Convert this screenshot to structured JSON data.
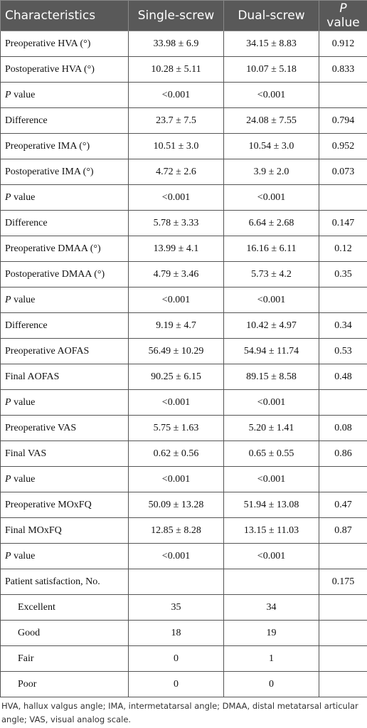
{
  "table": {
    "header": [
      "Characteristics",
      "Single-screw",
      "Dual-screw",
      {
        "em": "P",
        "text": " value"
      }
    ],
    "rows": [
      [
        "Preoperative HVA (°)",
        "33.98 ± 6.9",
        "34.15 ± 8.83",
        "0.912"
      ],
      [
        "Postoperative HVA (°)",
        "10.28 ± 5.11",
        "10.07 ± 5.18",
        "0.833"
      ],
      [
        {
          "em": "P",
          "text": " value"
        },
        "<0.001",
        "<0.001",
        null
      ],
      [
        "Difference",
        "23.7 ± 7.5",
        "24.08 ± 7.55",
        "0.794"
      ],
      [
        "Preoperative IMA (°)",
        "10.51 ± 3.0",
        "10.54 ± 3.0",
        "0.952"
      ],
      [
        "Postoperative IMA (°)",
        "4.72 ± 2.6",
        "3.9 ± 2.0",
        "0.073"
      ],
      [
        {
          "em": "P",
          "text": " value"
        },
        "<0.001",
        "<0.001",
        null
      ],
      [
        "Difference",
        "5.78 ± 3.33",
        "6.64 ± 2.68",
        "0.147"
      ],
      [
        "Preoperative DMAA (°)",
        "13.99 ± 4.1",
        "16.16 ± 6.11",
        "0.12"
      ],
      [
        "Postoperative DMAA (°)",
        "4.79 ± 3.46",
        "5.73 ± 4.2",
        "0.35"
      ],
      [
        {
          "em": "P",
          "text": " value"
        },
        "<0.001",
        "<0.001",
        null
      ],
      [
        "Difference",
        "9.19 ± 4.7",
        "10.42 ± 4.97",
        "0.34"
      ],
      [
        "Preoperative AOFAS",
        "56.49 ± 10.29",
        "54.94 ± 11.74",
        "0.53"
      ],
      [
        "Final AOFAS",
        "90.25 ± 6.15",
        "89.15 ± 8.58",
        "0.48"
      ],
      [
        {
          "em": "P",
          "text": " value"
        },
        "<0.001",
        "<0.001",
        null
      ],
      [
        "Preoperative VAS",
        "5.75 ± 1.63",
        "5.20 ± 1.41",
        "0.08"
      ],
      [
        "Final VAS",
        "0.62 ± 0.56",
        "0.65 ± 0.55",
        "0.86"
      ],
      [
        {
          "em": "P",
          "text": " value"
        },
        "<0.001",
        "<0.001",
        null
      ],
      [
        "Preoperative MOxFQ",
        "50.09 ± 13.28",
        "51.94 ± 13.08",
        "0.47"
      ],
      [
        "Final MOxFQ",
        "12.85 ± 8.28",
        "13.15 ± 11.03",
        "0.87"
      ],
      [
        {
          "em": "P",
          "text": " value"
        },
        "<0.001",
        "<0.001",
        null
      ],
      [
        "Patient satisfaction, No.",
        null,
        null,
        "0.175"
      ],
      [
        {
          "indent": "Excellent"
        },
        "35",
        "34",
        null
      ],
      [
        {
          "indent": "Good"
        },
        "18",
        "19",
        null
      ],
      [
        {
          "indent": "Fair"
        },
        "0",
        "1",
        null
      ],
      [
        {
          "indent": "Poor"
        },
        "0",
        "0",
        null
      ]
    ],
    "footnote": "HVA, hallux valgus angle; IMA, intermetatarsal angle; DMAA, distal metatarsal articular angle; VAS, visual analog scale."
  }
}
